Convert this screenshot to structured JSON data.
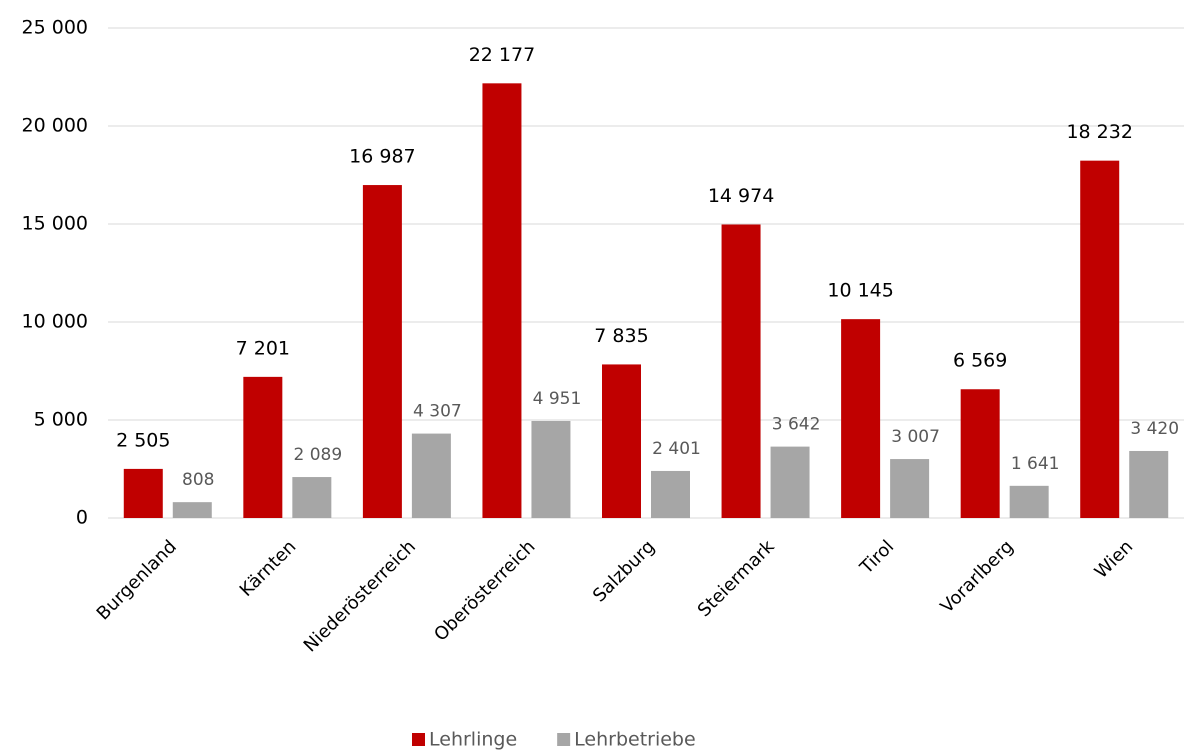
{
  "chart_data": {
    "type": "bar",
    "categories": [
      "Burgenland",
      "Kärnten",
      "Niederösterreich",
      "Oberösterreich",
      "Salzburg",
      "Steiermark",
      "Tirol",
      "Vorarlberg",
      "Wien"
    ],
    "series": [
      {
        "name": "Lehrlinge",
        "color": "#c00000",
        "values": [
          2505,
          7201,
          16987,
          22177,
          7835,
          14974,
          10145,
          6569,
          18232
        ],
        "value_labels": [
          "2 505",
          "7 201",
          "16 987",
          "22 177",
          "7 835",
          "14 974",
          "10 145",
          "6 569",
          "18 232"
        ]
      },
      {
        "name": "Lehrbetriebe",
        "color": "#a6a6a6",
        "values": [
          808,
          2089,
          4307,
          4951,
          2401,
          3642,
          3007,
          1641,
          3420
        ],
        "value_labels": [
          "808",
          "2 089",
          "4 307",
          "4 951",
          "2 401",
          "3 642",
          "3 007",
          "1 641",
          "3 420"
        ]
      }
    ],
    "ylim": [
      0,
      25000
    ],
    "yticks": [
      0,
      {
        "value": 5000,
        "label": "5 000"
      },
      {
        "value": 10000,
        "label": "10 000"
      },
      {
        "value": 15000,
        "label": "15 000"
      },
      {
        "value": 20000,
        "label": "20 000"
      },
      {
        "value": 25000,
        "label": "25 000"
      }
    ],
    "grid": true,
    "legend": "bottom"
  }
}
